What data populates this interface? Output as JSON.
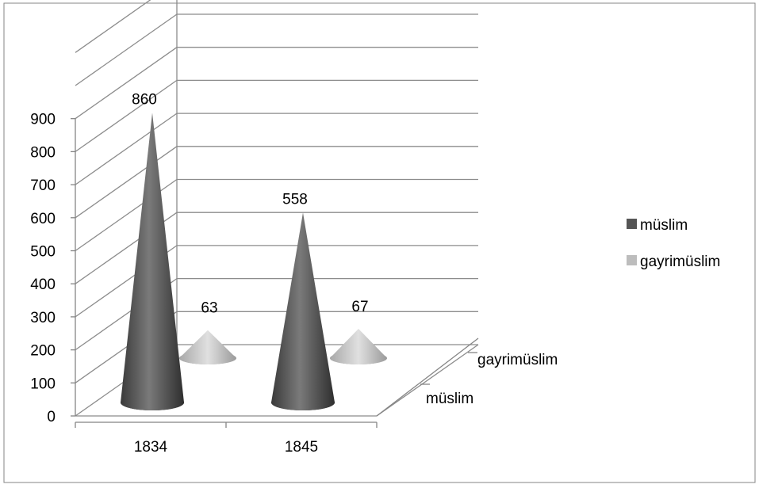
{
  "chart_data": {
    "type": "bar",
    "style": "3d-cone",
    "categories": [
      "1834",
      "1845"
    ],
    "series": [
      {
        "name": "müslim",
        "values": [
          860,
          558
        ],
        "color": "#555555"
      },
      {
        "name": "gayrimüslim",
        "values": [
          63,
          67
        ],
        "color": "#bdbdbd"
      }
    ],
    "ylim": [
      0,
      900
    ],
    "yticks": [
      0,
      100,
      200,
      300,
      400,
      500,
      600,
      700,
      800,
      900
    ],
    "depth_labels": [
      "müslim",
      "gayrimüslim"
    ],
    "grid": true,
    "legend_position": "right",
    "data_labels": true
  }
}
